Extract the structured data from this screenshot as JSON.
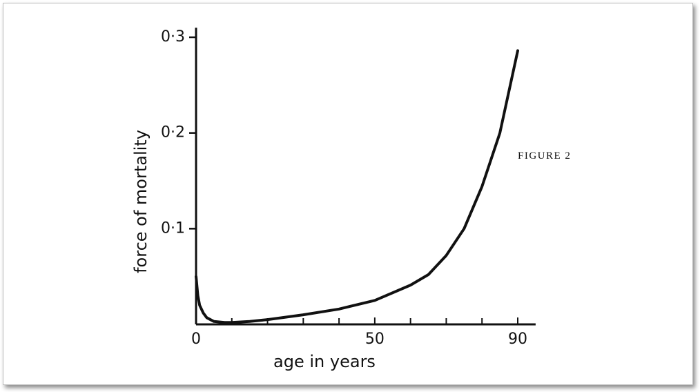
{
  "chart_data": {
    "type": "line",
    "y_label": "force of mortality",
    "x_label": "age in years",
    "annotation": "FIGURE 2",
    "x": [
      0,
      0.5,
      1,
      2,
      3,
      5,
      8,
      10,
      15,
      20,
      30,
      40,
      50,
      60,
      65,
      70,
      75,
      80,
      85,
      90
    ],
    "series": [
      {
        "color": "#111111",
        "values": [
          0.05,
          0.03,
          0.02,
          0.012,
          0.007,
          0.003,
          0.002,
          0.002,
          0.003,
          0.005,
          0.01,
          0.016,
          0.025,
          0.041,
          0.052,
          0.072,
          0.1,
          0.144,
          0.2,
          0.286
        ]
      }
    ],
    "xlim": [
      0,
      95
    ],
    "ylim": [
      0,
      0.31
    ],
    "xticks": [
      0,
      50,
      90
    ],
    "xminor": [
      10,
      20,
      30,
      40,
      60,
      70,
      80
    ],
    "yticks": [
      {
        "value": 0.1,
        "label": "0·1"
      },
      {
        "value": 0.2,
        "label": "0·2"
      },
      {
        "value": 0.3,
        "label": "0·3"
      }
    ]
  }
}
